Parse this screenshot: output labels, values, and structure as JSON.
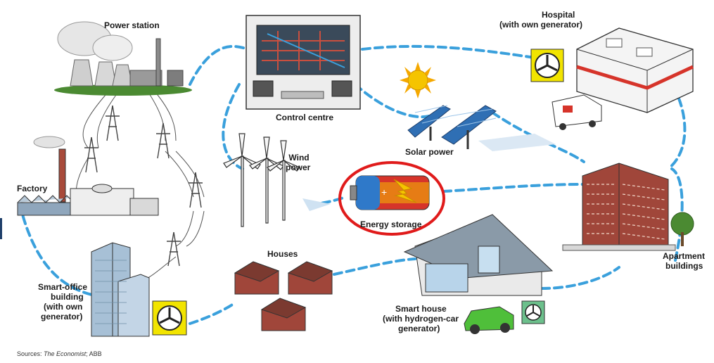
{
  "diagram": {
    "labels": {
      "power_station": "Power station",
      "control_centre": "Control centre",
      "hospital": "Hospital",
      "hospital_note": "(with own generator)",
      "factory": "Factory",
      "wind_power_1": "Wind",
      "wind_power_2": "power",
      "solar_power": "Solar power",
      "energy_storage": "Energy storage",
      "houses": "Houses",
      "smart_office_1": "Smart-office",
      "smart_office_2": "building",
      "smart_office_3": "(with own",
      "smart_office_4": "generator)",
      "smart_house_1": "Smart house",
      "smart_house_2": "(with hydrogen-car",
      "smart_house_3": "generator)",
      "apartment_1": "Apartment",
      "apartment_2": "buildings"
    },
    "source": {
      "prefix": "Sources:",
      "publication": "The Economist",
      "suffix": "; ABB"
    },
    "colors": {
      "network_line": "#3aa0dc",
      "highlight_ring": "#e01b1b",
      "generator_badge": "#f2e400",
      "battery_red": "#d6342a",
      "battery_yellow": "#f5c400",
      "battery_blue": "#2f79c9",
      "brick": "#a0463a",
      "grass": "#4b8a32"
    },
    "icons": [
      "power-station-icon",
      "control-panel-icon",
      "hospital-building-icon",
      "ambulance-icon",
      "generator-fan-icon",
      "sun-icon",
      "solar-panel-icon",
      "wind-turbine-icon",
      "battery-icon",
      "factory-icon",
      "pylon-icon",
      "office-tower-icon",
      "house-icon",
      "smart-house-icon",
      "hydrogen-car-icon",
      "apartment-building-icon",
      "tree-icon"
    ]
  }
}
